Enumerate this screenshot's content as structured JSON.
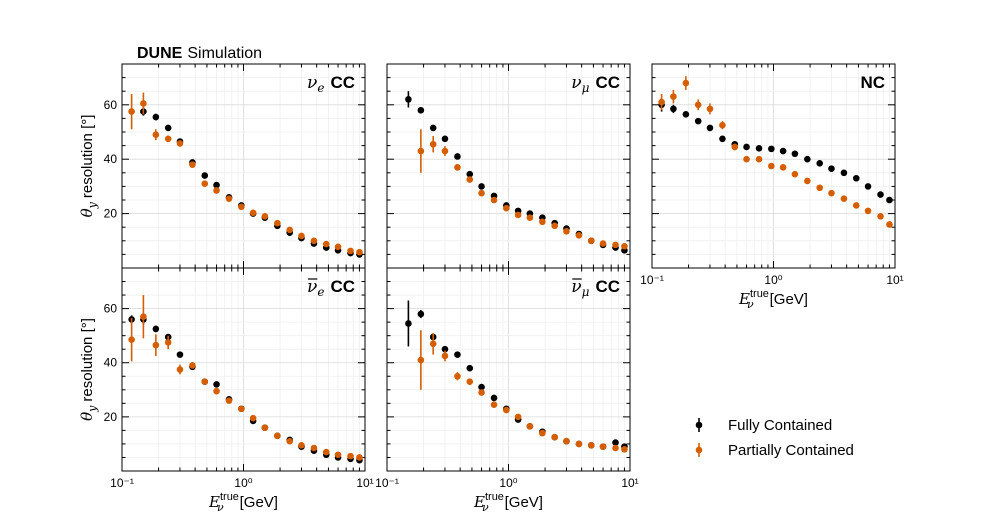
{
  "figure": {
    "experiment": "DUNE",
    "subtitle": "Simulation"
  },
  "colors": {
    "fully_contained": "#000000",
    "partially_contained": "#d55e00",
    "grid": "#e6e6e6"
  },
  "legend": {
    "placement": "lower-right",
    "entries": [
      "Fully Contained",
      "Partially Contained"
    ]
  },
  "chart_data": [
    {
      "type": "scatter",
      "panel": "top-left",
      "label_symbol": "ν",
      "label_sub": "e",
      "label_bar": false,
      "label_text": "CC",
      "xscale": "log",
      "xlim": [
        0.1,
        10
      ],
      "ylim": [
        0,
        75
      ],
      "yticks": [
        20,
        40,
        60
      ],
      "show_xticklabels": false,
      "show_yticklabels": true,
      "ylabel_symbol": "θ",
      "ylabel_sub": "y",
      "ylabel_text": "resolution [°]",
      "series": [
        {
          "name": "Fully Contained",
          "x": [
            0.15,
            0.19,
            0.24,
            0.3,
            0.38,
            0.48,
            0.6,
            0.76,
            0.96,
            1.2,
            1.5,
            1.9,
            2.4,
            3.0,
            3.8,
            4.8,
            6.0,
            7.6,
            9.0
          ],
          "y": [
            57.5,
            55.5,
            51.5,
            46.5,
            38.8,
            34.0,
            30.5,
            26.0,
            23.0,
            20.0,
            18.5,
            15.5,
            13.0,
            11.0,
            9.0,
            7.5,
            6.5,
            5.5,
            5.0
          ],
          "yerr": [
            1.5,
            1.2,
            1.0,
            0.9,
            0.8,
            0.7,
            0.6,
            0.6,
            0.5,
            0.5,
            0.5,
            0.5,
            0.5,
            0.5,
            0.5,
            0.5,
            0.5,
            0.5,
            0.5
          ]
        },
        {
          "name": "Partially Contained",
          "x": [
            0.12,
            0.15,
            0.19,
            0.24,
            0.3,
            0.38,
            0.48,
            0.6,
            0.76,
            0.96,
            1.2,
            1.5,
            1.9,
            2.4,
            3.0,
            3.8,
            4.8,
            6.0,
            7.6,
            9.0
          ],
          "y": [
            57.5,
            60.5,
            49.0,
            47.5,
            45.8,
            38.0,
            31.0,
            28.5,
            25.5,
            22.5,
            20.3,
            19.0,
            16.5,
            14.0,
            11.8,
            10.0,
            8.8,
            7.8,
            6.3,
            5.8
          ],
          "yerr": [
            6.5,
            4.0,
            2.0,
            1.2,
            1.2,
            1.0,
            0.9,
            0.7,
            0.6,
            0.6,
            0.5,
            0.5,
            0.5,
            0.5,
            0.5,
            0.5,
            0.5,
            0.5,
            0.5,
            0.5
          ]
        }
      ]
    },
    {
      "type": "scatter",
      "panel": "top-middle",
      "label_symbol": "ν",
      "label_sub": "μ",
      "label_bar": false,
      "label_text": "CC",
      "xscale": "log",
      "xlim": [
        0.1,
        10
      ],
      "ylim": [
        0,
        75
      ],
      "yticks": [
        20,
        40,
        60
      ],
      "show_xticklabels": false,
      "show_yticklabels": false,
      "series": [
        {
          "name": "Fully Contained",
          "x": [
            0.15,
            0.19,
            0.24,
            0.3,
            0.38,
            0.48,
            0.6,
            0.76,
            0.96,
            1.2,
            1.5,
            1.9,
            2.4,
            3.0,
            3.8,
            4.8,
            6.0,
            7.6,
            9.0
          ],
          "y": [
            62.0,
            58.0,
            51.5,
            47.5,
            41.0,
            34.5,
            30.0,
            26.5,
            23.0,
            21.0,
            20.0,
            18.5,
            16.5,
            14.5,
            12.5,
            10.0,
            8.5,
            7.5,
            6.5
          ],
          "yerr": [
            3.0,
            1.2,
            1.0,
            0.9,
            0.8,
            0.7,
            0.6,
            0.6,
            0.5,
            0.5,
            0.5,
            0.5,
            0.5,
            0.5,
            0.5,
            0.5,
            0.5,
            0.5,
            0.5
          ]
        },
        {
          "name": "Partially Contained",
          "x": [
            0.19,
            0.24,
            0.3,
            0.38,
            0.48,
            0.6,
            0.76,
            0.96,
            1.2,
            1.5,
            1.9,
            2.4,
            3.0,
            3.8,
            4.8,
            6.0,
            7.6,
            9.0
          ],
          "y": [
            43.0,
            45.5,
            43.0,
            37.0,
            32.5,
            27.5,
            25.0,
            22.0,
            19.5,
            18.5,
            17.0,
            15.5,
            13.5,
            12.0,
            10.0,
            9.0,
            8.5,
            8.0
          ],
          "yerr": [
            8.0,
            3.0,
            1.8,
            1.2,
            1.0,
            0.8,
            0.7,
            0.6,
            0.5,
            0.5,
            0.5,
            0.5,
            0.5,
            0.5,
            0.5,
            0.5,
            0.5,
            0.5
          ]
        }
      ]
    },
    {
      "type": "scatter",
      "panel": "top-right",
      "label_symbol": "",
      "label_sub": "",
      "label_bar": false,
      "label_text": "NC",
      "xscale": "log",
      "xlim": [
        0.1,
        10
      ],
      "ylim": [
        0,
        75
      ],
      "yticks": [
        20,
        40,
        60
      ],
      "show_xticklabels": true,
      "show_yticklabels": false,
      "xlabel_symbol": "E",
      "xlabel_sub": "ν",
      "xlabel_sup": "true",
      "xlabel_text": "[GeV]",
      "xtick_labels": [
        "10⁻¹",
        "10⁰",
        "10¹"
      ],
      "series": [
        {
          "name": "Fully Contained",
          "x": [
            0.12,
            0.15,
            0.19,
            0.24,
            0.3,
            0.38,
            0.48,
            0.6,
            0.76,
            0.96,
            1.2,
            1.5,
            1.9,
            2.4,
            3.0,
            3.8,
            4.8,
            6.0,
            7.6,
            9.0
          ],
          "y": [
            60.0,
            58.5,
            56.5,
            54.0,
            51.5,
            47.5,
            45.5,
            44.5,
            44.0,
            43.8,
            43.0,
            42.0,
            40.0,
            38.5,
            36.5,
            35.0,
            33.0,
            30.0,
            27.0,
            25.0
          ],
          "yerr": [
            2.5,
            1.5,
            1.0,
            0.8,
            0.8,
            0.7,
            0.6,
            0.5,
            0.5,
            0.5,
            0.5,
            0.5,
            0.5,
            0.5,
            0.5,
            0.5,
            0.5,
            0.5,
            0.5,
            0.5
          ]
        },
        {
          "name": "Partially Contained",
          "x": [
            0.12,
            0.15,
            0.19,
            0.24,
            0.3,
            0.38,
            0.48,
            0.6,
            0.76,
            0.96,
            1.2,
            1.5,
            1.9,
            2.4,
            3.0,
            3.8,
            4.8,
            6.0,
            7.6,
            9.0
          ],
          "y": [
            61.0,
            63.0,
            68.0,
            60.0,
            58.5,
            52.5,
            44.5,
            40.0,
            40.0,
            37.5,
            37.0,
            34.5,
            32.0,
            29.5,
            27.5,
            25.5,
            23.0,
            21.0,
            19.0,
            16.0
          ],
          "yerr": [
            3.0,
            2.5,
            2.5,
            2.0,
            2.0,
            1.5,
            1.2,
            0.8,
            0.7,
            0.6,
            0.5,
            0.5,
            0.5,
            0.5,
            0.5,
            0.5,
            0.5,
            0.5,
            0.5,
            0.5
          ]
        }
      ]
    },
    {
      "type": "scatter",
      "panel": "bottom-left",
      "label_symbol": "ν",
      "label_sub": "e",
      "label_bar": true,
      "label_text": "CC",
      "xscale": "log",
      "xlim": [
        0.1,
        10
      ],
      "ylim": [
        0,
        75
      ],
      "yticks": [
        20,
        40,
        60
      ],
      "show_xticklabels": true,
      "show_yticklabels": true,
      "ylabel_symbol": "θ",
      "ylabel_sub": "y",
      "ylabel_text": "resolution [°]",
      "xlabel_symbol": "E",
      "xlabel_sub": "ν",
      "xlabel_sup": "true",
      "xlabel_text": "[GeV]",
      "xtick_labels": [
        "10⁻¹",
        "10⁰",
        "10¹"
      ],
      "series": [
        {
          "name": "Fully Contained",
          "x": [
            0.12,
            0.15,
            0.19,
            0.24,
            0.3,
            0.38,
            0.48,
            0.6,
            0.76,
            0.96,
            1.2,
            1.5,
            1.9,
            2.4,
            3.0,
            3.8,
            4.8,
            6.0,
            7.6,
            9.0
          ],
          "y": [
            56.0,
            56.0,
            52.5,
            49.5,
            43.0,
            38.5,
            33.0,
            32.0,
            26.5,
            23.0,
            18.5,
            16.0,
            13.0,
            11.5,
            9.0,
            7.5,
            6.0,
            5.0,
            4.5,
            4.0
          ],
          "yerr": [
            1.5,
            2.0,
            1.2,
            1.0,
            0.8,
            0.7,
            0.6,
            0.6,
            0.5,
            0.5,
            0.5,
            0.5,
            0.5,
            0.5,
            0.5,
            0.5,
            0.5,
            0.5,
            0.5,
            0.5
          ]
        },
        {
          "name": "Partially Contained",
          "x": [
            0.12,
            0.15,
            0.19,
            0.24,
            0.3,
            0.38,
            0.48,
            0.6,
            0.76,
            0.96,
            1.2,
            1.5,
            1.9,
            2.4,
            3.0,
            3.8,
            4.8,
            6.0,
            7.6,
            9.0
          ],
          "y": [
            48.5,
            57.0,
            46.5,
            47.5,
            37.5,
            39.0,
            33.0,
            29.5,
            26.0,
            23.0,
            19.5,
            16.0,
            13.0,
            11.0,
            9.5,
            8.5,
            7.0,
            6.0,
            5.5,
            5.0
          ],
          "yerr": [
            8.0,
            8.0,
            4.0,
            2.5,
            1.8,
            1.2,
            0.8,
            0.7,
            0.6,
            0.5,
            0.5,
            0.5,
            0.5,
            0.5,
            0.5,
            0.5,
            0.5,
            0.5,
            0.5,
            0.5
          ]
        }
      ]
    },
    {
      "type": "scatter",
      "panel": "bottom-middle",
      "label_symbol": "ν",
      "label_sub": "μ",
      "label_bar": true,
      "label_text": "CC",
      "xscale": "log",
      "xlim": [
        0.1,
        10
      ],
      "ylim": [
        0,
        75
      ],
      "yticks": [
        20,
        40,
        60
      ],
      "show_xticklabels": true,
      "show_yticklabels": false,
      "xlabel_symbol": "E",
      "xlabel_sub": "ν",
      "xlabel_sup": "true",
      "xlabel_text": "[GeV]",
      "xtick_labels": [
        "10⁻¹",
        "10⁰",
        "10¹"
      ],
      "series": [
        {
          "name": "Fully Contained",
          "x": [
            0.15,
            0.19,
            0.24,
            0.3,
            0.38,
            0.48,
            0.6,
            0.76,
            0.96,
            1.2,
            1.5,
            1.9,
            2.4,
            3.0,
            3.8,
            4.8,
            6.0,
            7.6,
            9.0
          ],
          "y": [
            54.5,
            58.0,
            49.5,
            45.0,
            43.0,
            38.0,
            31.0,
            27.0,
            23.0,
            19.0,
            16.5,
            14.5,
            12.5,
            11.0,
            10.0,
            9.5,
            9.0,
            10.5,
            9.0
          ],
          "yerr": [
            8.5,
            1.5,
            1.2,
            1.0,
            0.8,
            0.7,
            0.6,
            0.6,
            0.5,
            0.5,
            0.5,
            0.5,
            0.5,
            0.5,
            0.5,
            0.5,
            0.5,
            0.5,
            0.5
          ]
        },
        {
          "name": "Partially Contained",
          "x": [
            0.19,
            0.24,
            0.3,
            0.38,
            0.48,
            0.6,
            0.76,
            0.96,
            1.2,
            1.5,
            1.9,
            2.4,
            3.0,
            3.8,
            4.8,
            6.0,
            7.6,
            9.0
          ],
          "y": [
            41.0,
            47.0,
            42.5,
            35.0,
            33.0,
            29.0,
            24.5,
            22.5,
            20.0,
            16.5,
            14.0,
            12.5,
            11.0,
            10.0,
            9.5,
            9.0,
            8.5,
            8.0
          ],
          "yerr": [
            11.0,
            4.0,
            2.0,
            1.5,
            1.0,
            0.8,
            0.7,
            0.6,
            0.5,
            0.5,
            0.5,
            0.5,
            0.5,
            0.5,
            0.5,
            0.5,
            0.5,
            0.5
          ]
        }
      ]
    }
  ]
}
